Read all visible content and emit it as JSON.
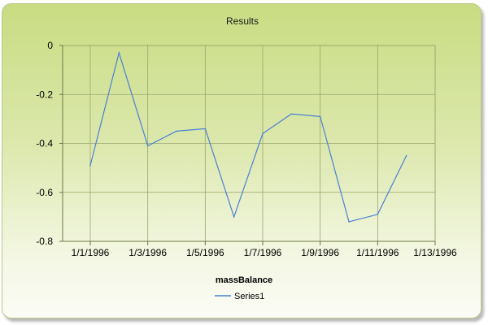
{
  "chart_data": {
    "type": "line",
    "title": "Results",
    "xlabel": "",
    "ylabel": "",
    "legend": {
      "title": "massBalance",
      "placement": "bottom-center"
    },
    "x_ticks": [
      "1/1/1996",
      "1/3/1996",
      "1/5/1996",
      "1/7/1996",
      "1/9/1996",
      "1/11/1996",
      "1/13/1996"
    ],
    "y_ticks": [
      "0",
      "-0.2",
      "-0.4",
      "-0.6",
      "-0.8"
    ],
    "xlim": [
      1,
      13
    ],
    "ylim": [
      -0.8,
      0
    ],
    "grid": true,
    "series": [
      {
        "name": "Series1",
        "color": "#4a7fd4",
        "x": [
          1,
          2,
          3,
          4,
          5,
          6,
          7,
          8,
          9,
          10,
          11,
          12
        ],
        "values": [
          -0.49,
          -0.03,
          -0.41,
          -0.35,
          -0.34,
          -0.7,
          -0.36,
          -0.28,
          -0.29,
          -0.72,
          -0.69,
          -0.45
        ]
      }
    ]
  },
  "colors": {
    "grid": "#9aa66e",
    "axis": "#6f7747",
    "series": "#4a7fd4"
  }
}
